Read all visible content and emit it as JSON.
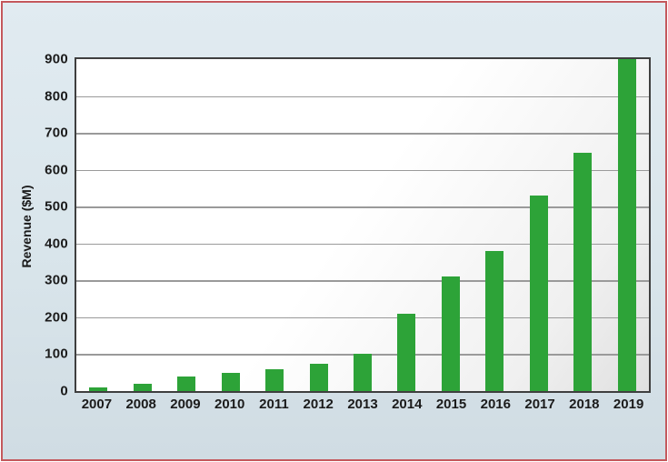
{
  "figure": {
    "outer_border_color": "#c4585c",
    "background_color_top": "#e1ebf1",
    "background_color_bottom": "#d0dce3",
    "plot_border_color": "#3f3f3f",
    "gridline_color": "#9a9a9a",
    "bar_color": "#2da338",
    "text_color": "#1b1b1b"
  },
  "chart_data": {
    "type": "bar",
    "title": "",
    "xlabel": "",
    "ylabel": "Revenue ($M)",
    "categories": [
      "2007",
      "2008",
      "2009",
      "2010",
      "2011",
      "2012",
      "2013",
      "2014",
      "2015",
      "2016",
      "2017",
      "2018",
      "2019"
    ],
    "values": [
      10,
      20,
      40,
      50,
      60,
      75,
      100,
      210,
      310,
      380,
      530,
      645,
      900
    ],
    "ylim": [
      0,
      900
    ],
    "ytick_step": 100,
    "yticks": [
      0,
      100,
      200,
      300,
      400,
      500,
      600,
      700,
      800,
      900
    ],
    "grid": "horizontal",
    "legend_position": "none"
  }
}
